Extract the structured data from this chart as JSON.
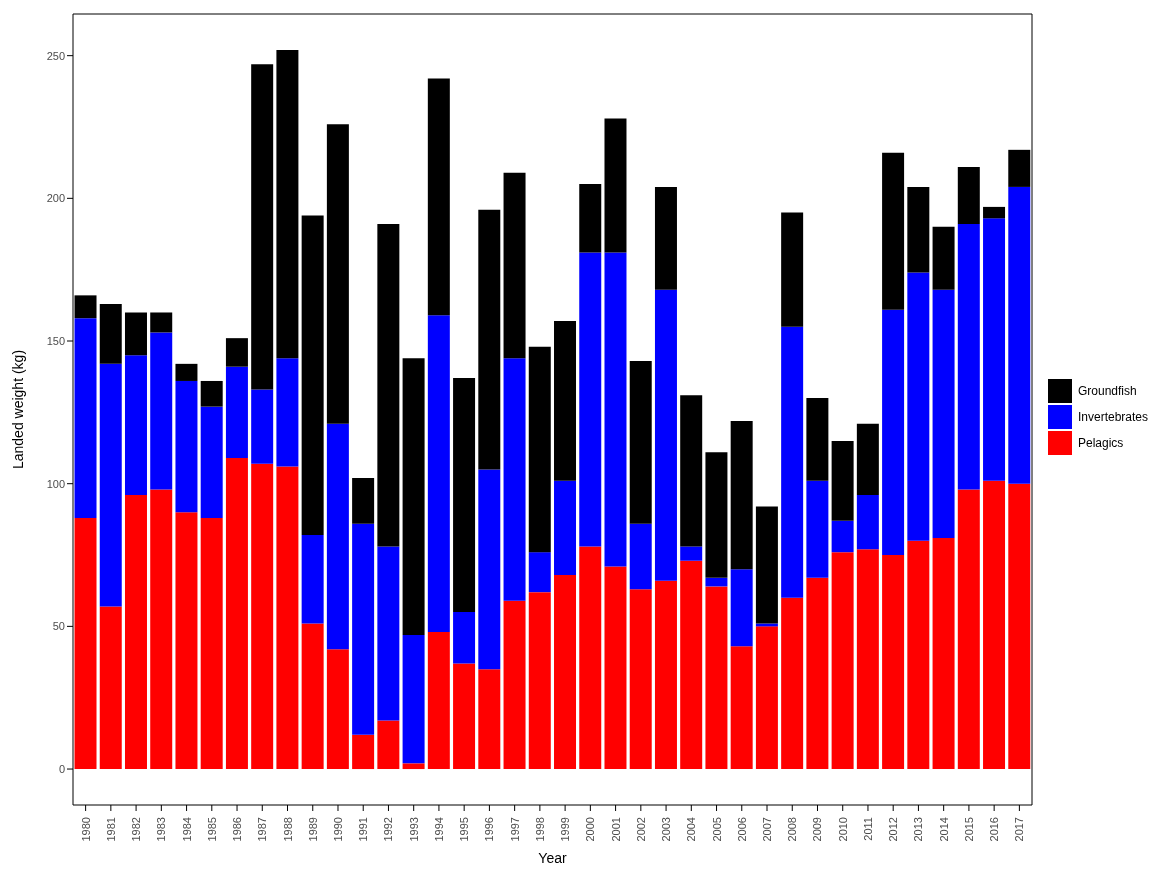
{
  "chart_data": {
    "type": "bar",
    "stacked": true,
    "xlabel": "Year",
    "ylabel": "Landed weight (kg)",
    "legend": "right",
    "categories": [
      "1980",
      "1981",
      "1982",
      "1983",
      "1984",
      "1985",
      "1986",
      "1987",
      "1988",
      "1989",
      "1990",
      "1991",
      "1992",
      "1993",
      "1994",
      "1995",
      "1996",
      "1997",
      "1998",
      "1999",
      "2000",
      "2001",
      "2002",
      "2003",
      "2004",
      "2005",
      "2006",
      "2007",
      "2008",
      "2009",
      "2010",
      "2011",
      "2012",
      "2013",
      "2014",
      "2015",
      "2016",
      "2017"
    ],
    "series": [
      {
        "name": "Pelagics",
        "color": "#ff0000",
        "values": [
          88,
          57,
          96,
          98,
          90,
          88,
          109,
          107,
          106,
          51,
          42,
          12,
          17,
          2,
          48,
          37,
          35,
          59,
          62,
          68,
          78,
          71,
          63,
          66,
          73,
          64,
          43,
          50,
          60,
          67,
          76,
          77,
          75,
          80,
          81,
          98,
          101,
          100
        ]
      },
      {
        "name": "Invertebrates",
        "color": "#0000ff",
        "values": [
          70,
          85,
          49,
          55,
          46,
          39,
          32,
          26,
          38,
          31,
          79,
          74,
          61,
          45,
          111,
          18,
          70,
          85,
          14,
          33,
          103,
          110,
          23,
          102,
          5,
          3,
          27,
          1,
          95,
          34,
          11,
          19,
          86,
          94,
          87,
          93,
          92,
          104
        ]
      },
      {
        "name": "Groundfish",
        "color": "#000000",
        "values": [
          8,
          21,
          15,
          7,
          6,
          9,
          10,
          114,
          108,
          112,
          105,
          16,
          113,
          97,
          83,
          82,
          91,
          65,
          72,
          56,
          24,
          47,
          57,
          36,
          53,
          44,
          52,
          41,
          40,
          29,
          28,
          25,
          55,
          30,
          22,
          20,
          4,
          13
        ]
      }
    ],
    "ylim": [
      -12.6,
      264.6
    ],
    "yticks": [
      0,
      50,
      100,
      150,
      200,
      250
    ]
  }
}
